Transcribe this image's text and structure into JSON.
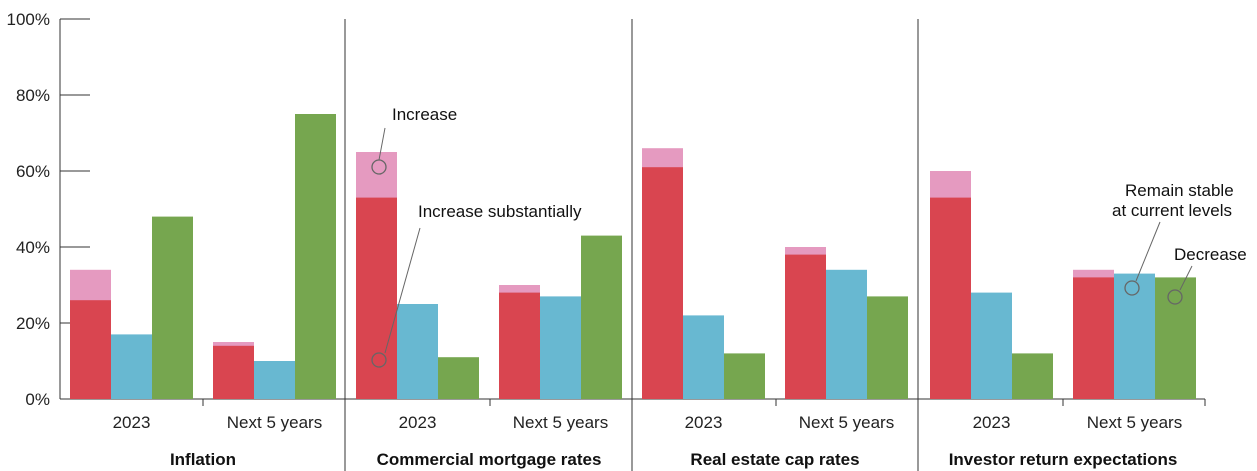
{
  "chart_data": {
    "type": "bar",
    "ylim": [
      0,
      100
    ],
    "yticks": [
      "0%",
      "20%",
      "40%",
      "60%",
      "80%",
      "100%"
    ],
    "ytick_values": [
      0,
      20,
      40,
      60,
      80,
      100
    ],
    "groups": [
      {
        "name": "Inflation",
        "periods": [
          {
            "label": "2023",
            "increase_substantially": 26,
            "increase": 34,
            "remain_stable": 17,
            "decrease": 48
          },
          {
            "label": "Next 5 years",
            "increase_substantially": 14,
            "increase": 15,
            "remain_stable": 10,
            "decrease": 75
          }
        ]
      },
      {
        "name": "Commercial mortgage rates",
        "periods": [
          {
            "label": "2023",
            "increase_substantially": 53,
            "increase": 65,
            "remain_stable": 25,
            "decrease": 11
          },
          {
            "label": "Next 5 years",
            "increase_substantially": 28,
            "increase": 30,
            "remain_stable": 27,
            "decrease": 43
          }
        ]
      },
      {
        "name": "Real estate cap rates",
        "periods": [
          {
            "label": "2023",
            "increase_substantially": 61,
            "increase": 66,
            "remain_stable": 22,
            "decrease": 12
          },
          {
            "label": "Next 5 years",
            "increase_substantially": 38,
            "increase": 40,
            "remain_stable": 34,
            "decrease": 27
          }
        ]
      },
      {
        "name": "Investor return expectations",
        "periods": [
          {
            "label": "2023",
            "increase_substantially": 53,
            "increase": 60,
            "remain_stable": 28,
            "decrease": 12
          },
          {
            "label": "Next 5 years",
            "increase_substantially": 32,
            "increase": 34,
            "remain_stable": 33,
            "decrease": 32
          }
        ]
      }
    ],
    "annotations": {
      "increase": "Increase",
      "increase_substantially": "Increase substantially",
      "remain_stable_line1": "Remain stable",
      "remain_stable_line2": "at current levels",
      "decrease": "Decrease"
    },
    "colors": {
      "increase_substantially": "#d94550",
      "increase": "#e59ac0",
      "remain_stable": "#68b8d1",
      "decrease": "#76a64f",
      "axis": "#333333"
    }
  }
}
